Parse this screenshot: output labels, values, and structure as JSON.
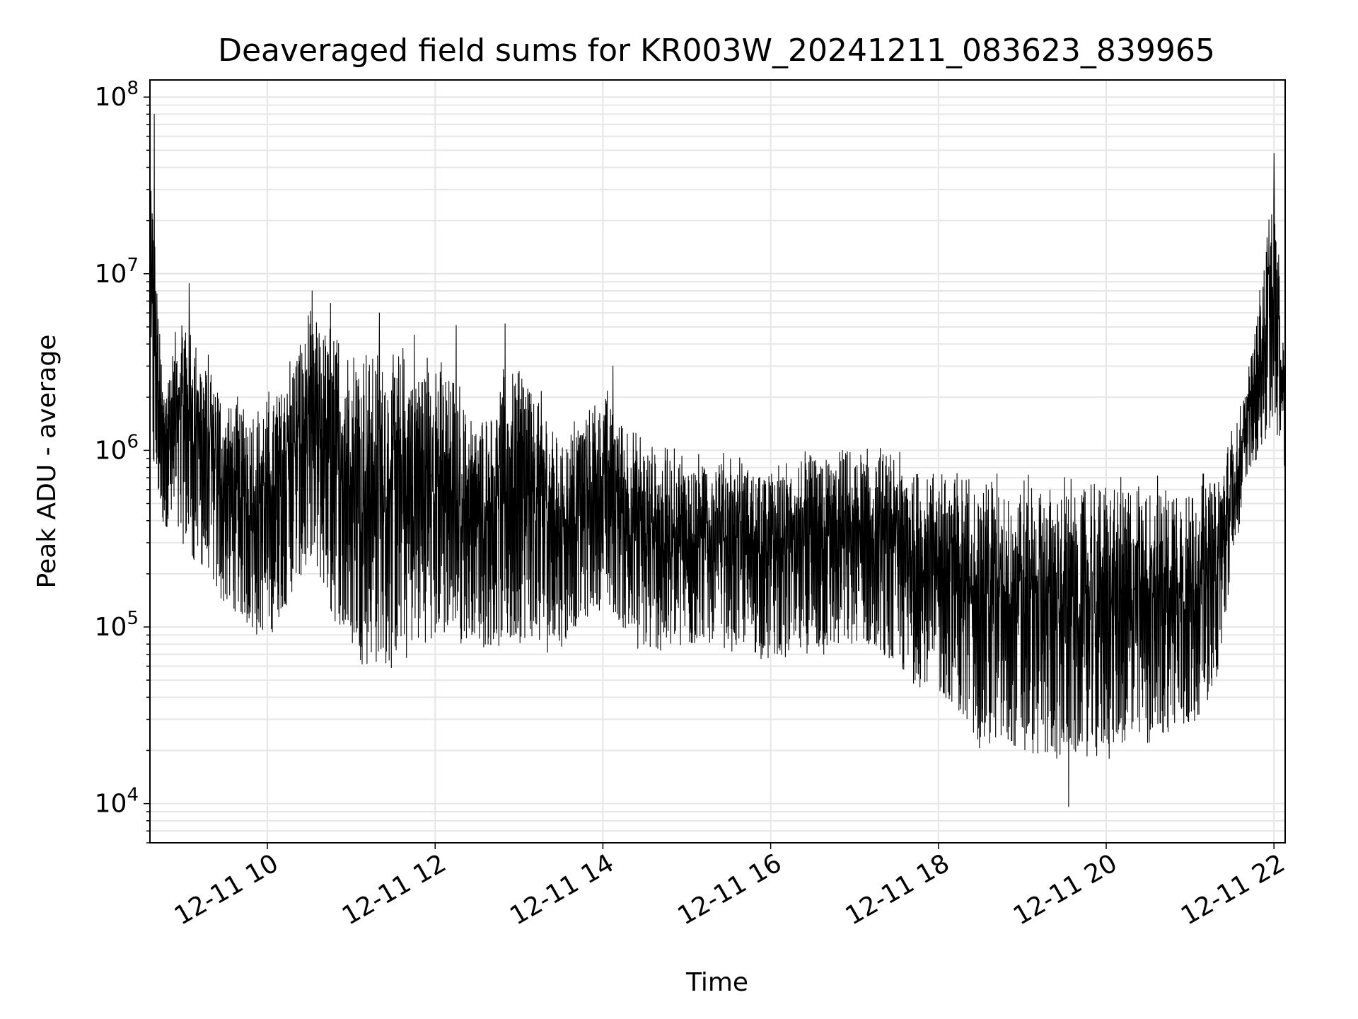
{
  "chart_data": {
    "type": "line",
    "title": "Deaveraged field sums for KR003W_20241211_083623_839965",
    "xlabel": "Time",
    "ylabel": "Peak ADU - average",
    "y_scale": "log",
    "ylim": [
      6000,
      125000000
    ],
    "xlim": [
      "12-11 08:36",
      "12-11 22:08"
    ],
    "grid": true,
    "line_color": "#000000",
    "x_ticks": [
      {
        "t": "12-11 10:00",
        "label": "12-11 10"
      },
      {
        "t": "12-11 12:00",
        "label": "12-11 12"
      },
      {
        "t": "12-11 14:00",
        "label": "12-11 14"
      },
      {
        "t": "12-11 16:00",
        "label": "12-11 16"
      },
      {
        "t": "12-11 18:00",
        "label": "12-11 18"
      },
      {
        "t": "12-11 20:00",
        "label": "12-11 20"
      },
      {
        "t": "12-11 22:00",
        "label": "12-11 22"
      }
    ],
    "y_ticks": [
      {
        "value": 10000,
        "base": "10",
        "exp": "4"
      },
      {
        "value": 100000,
        "base": "10",
        "exp": "5"
      },
      {
        "value": 1000000,
        "base": "10",
        "exp": "6"
      },
      {
        "value": 10000000,
        "base": "10",
        "exp": "7"
      },
      {
        "value": 100000000,
        "base": "10",
        "exp": "8"
      }
    ],
    "series": [
      {
        "description_points": [
          {
            "t": "12-11 08:36",
            "low": 500000,
            "high": 80000000
          },
          {
            "t": "12-11 08:45",
            "low": 300000,
            "high": 3000000
          },
          {
            "t": "12-11 09:00",
            "low": 200000,
            "high": 9000000
          },
          {
            "t": "12-11 09:30",
            "low": 100000,
            "high": 2500000
          },
          {
            "t": "12-11 10:00",
            "low": 60000,
            "high": 2500000
          },
          {
            "t": "12-11 10:30",
            "low": 150000,
            "high": 8000000
          },
          {
            "t": "12-11 11:00",
            "low": 45000,
            "high": 6000000
          },
          {
            "t": "12-11 11:30",
            "low": 40000,
            "high": 5000000
          },
          {
            "t": "12-11 12:00",
            "low": 60000,
            "high": 5000000
          },
          {
            "t": "12-11 12:30",
            "low": 60000,
            "high": 2000000
          },
          {
            "t": "12-11 13:00",
            "low": 50000,
            "high": 5000000
          },
          {
            "t": "12-11 13:30",
            "low": 60000,
            "high": 1500000
          },
          {
            "t": "12-11 14:00",
            "low": 100000,
            "high": 3000000
          },
          {
            "t": "12-11 14:30",
            "low": 50000,
            "high": 1400000
          },
          {
            "t": "12-11 15:00",
            "low": 60000,
            "high": 1200000
          },
          {
            "t": "12-11 15:30",
            "low": 60000,
            "high": 1200000
          },
          {
            "t": "12-11 16:00",
            "low": 50000,
            "high": 1000000
          },
          {
            "t": "12-11 16:30",
            "low": 50000,
            "high": 1200000
          },
          {
            "t": "12-11 17:00",
            "low": 60000,
            "high": 1300000
          },
          {
            "t": "12-11 17:30",
            "low": 40000,
            "high": 1200000
          },
          {
            "t": "12-11 18:00",
            "low": 30000,
            "high": 1100000
          },
          {
            "t": "12-11 18:30",
            "low": 15000,
            "high": 1000000
          },
          {
            "t": "12-11 19:00",
            "low": 13000,
            "high": 950000
          },
          {
            "t": "12-11 19:30",
            "low": 12000,
            "high": 900000
          },
          {
            "t": "12-11 20:00",
            "low": 13000,
            "high": 900000
          },
          {
            "t": "12-11 20:30",
            "low": 15000,
            "high": 950000
          },
          {
            "t": "12-11 21:00",
            "low": 18000,
            "high": 950000
          },
          {
            "t": "12-11 21:20",
            "low": 40000,
            "high": 900000
          },
          {
            "t": "12-11 21:40",
            "low": 600000,
            "high": 2500000
          },
          {
            "t": "12-11 22:00",
            "low": 1000000,
            "high": 48000000
          },
          {
            "t": "12-11 22:08",
            "low": 600000,
            "high": 3000000
          }
        ],
        "spikes": [
          {
            "t": "12-11 08:39",
            "value": 80000000
          },
          {
            "t": "12-11 09:04",
            "value": 8800000
          },
          {
            "t": "12-11 10:32",
            "value": 8000000
          },
          {
            "t": "12-11 10:45",
            "value": 6800000
          },
          {
            "t": "12-11 11:20",
            "value": 6000000
          },
          {
            "t": "12-11 11:45",
            "value": 4500000
          },
          {
            "t": "12-11 12:15",
            "value": 5100000
          },
          {
            "t": "12-11 12:50",
            "value": 5200000
          },
          {
            "t": "12-11 14:07",
            "value": 3000000
          },
          {
            "t": "12-11 21:55",
            "value": 16000000
          },
          {
            "t": "12-11 22:00",
            "value": 48000000
          },
          {
            "t": "12-11 19:33",
            "value": 9600
          }
        ]
      }
    ]
  }
}
